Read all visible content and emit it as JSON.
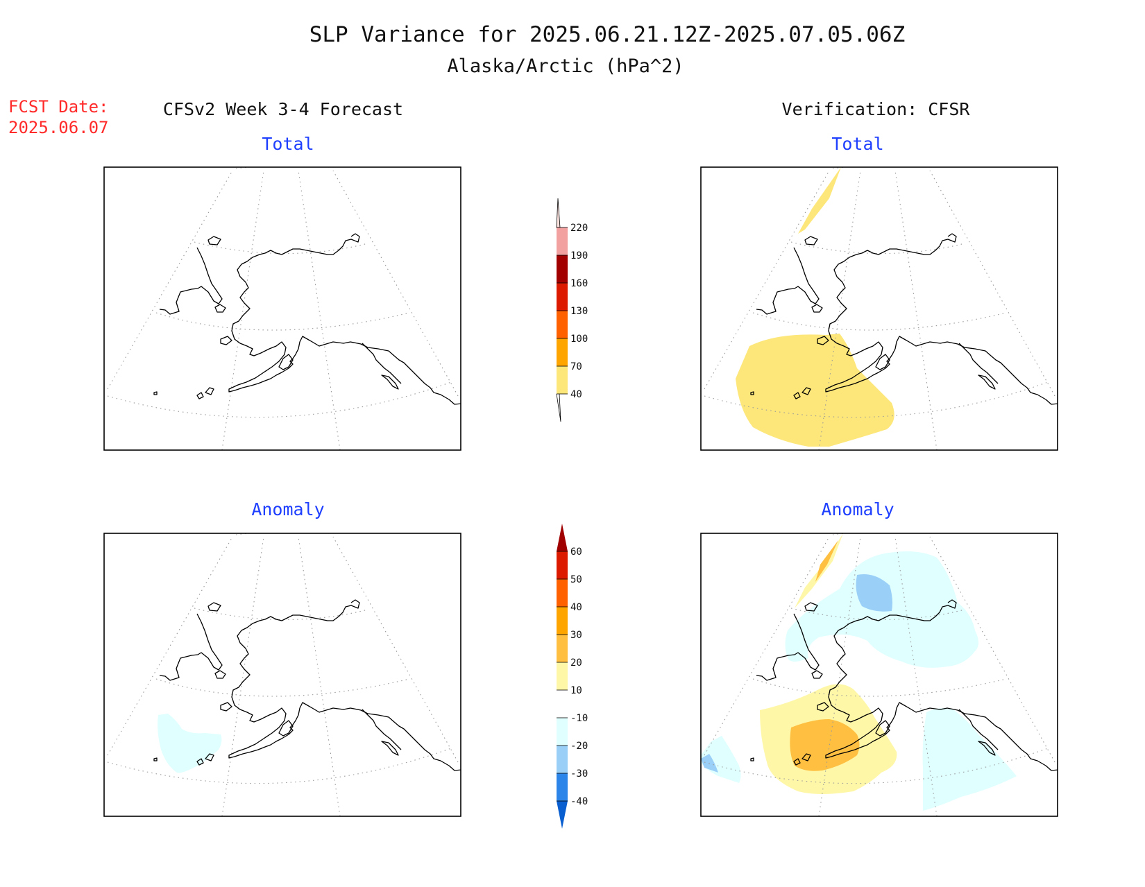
{
  "title": {
    "line1": "SLP Variance for 2025.06.21.12Z-2025.07.05.06Z",
    "line2": "Alaska/Arctic (hPa^2)"
  },
  "fcst": {
    "label": "FCST Date:",
    "date": "2025.06.07"
  },
  "columns": {
    "left": "CFSv2 Week 3-4 Forecast",
    "right": "Verification: CFSR"
  },
  "panels": {
    "top_left": "Total",
    "top_right": "Total",
    "bottom_left": "Anomaly",
    "bottom_right": "Anomaly"
  },
  "colorbar_total": {
    "ticks": [
      "220",
      "190",
      "160",
      "130",
      "100",
      "70",
      "40"
    ],
    "colors": {
      "220+": "#fde3e0",
      "190-220": "#f2a0a0",
      "160-190": "#a20000",
      "130-160": "#dc1a00",
      "100-130": "#ff6000",
      "70-100": "#ffa500",
      "40-70": "#fde77a"
    }
  },
  "colorbar_anomaly": {
    "ticks": [
      "60",
      "50",
      "40",
      "30",
      "20",
      "10",
      "-10",
      "-20",
      "-30",
      "-40"
    ],
    "colors": {
      "60+": "#a00000",
      "50-60": "#dc1a00",
      "40-50": "#ff6000",
      "30-40": "#ffa500",
      "20-30": "#ffbf40",
      "10-20": "#fff7a8",
      "-20--10": "#e0ffff",
      "-30--20": "#9ad0f8",
      "-40--30": "#2c85e8",
      "-40-": "#0a5fd0"
    }
  }
}
